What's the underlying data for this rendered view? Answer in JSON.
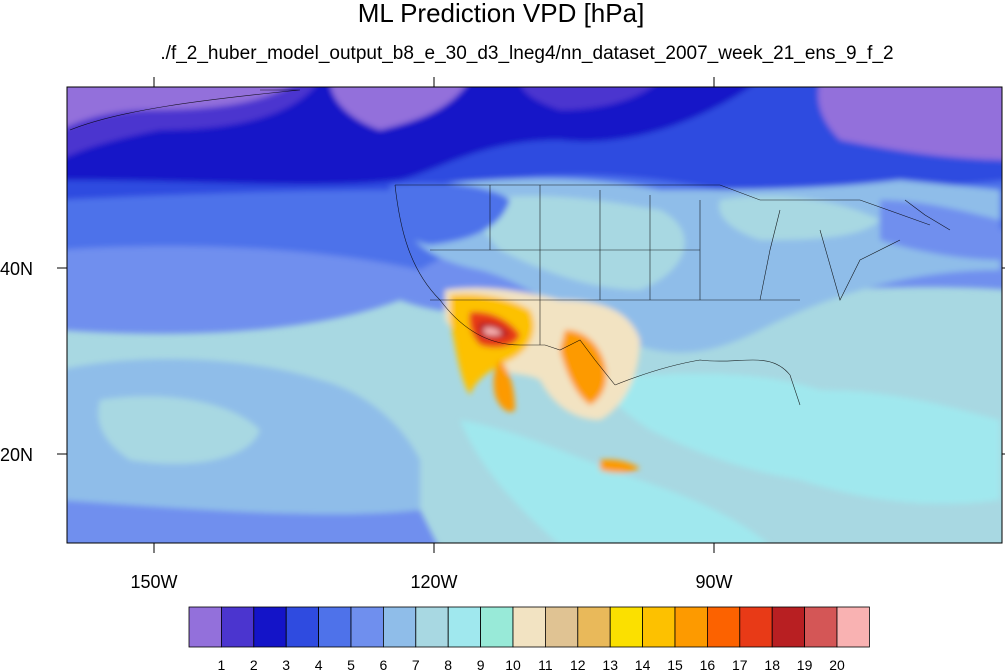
{
  "title": "ML Prediction VPD [hPa]",
  "subtitle": "./f_2_huber_model_output_b8_e_30_d3_lneg4/nn_dataset_2007_week_21_ens_9_f_2",
  "map": {
    "x_ticks": [
      "150W",
      "120W",
      "90W"
    ],
    "y_ticks": [
      "40N",
      "20N"
    ]
  },
  "colorbar": {
    "labels": [
      "1",
      "2",
      "3",
      "4",
      "5",
      "6",
      "7",
      "8",
      "9",
      "10",
      "11",
      "12",
      "13",
      "14",
      "15",
      "16",
      "17",
      "18",
      "19",
      "20"
    ],
    "colors": [
      "#9370db",
      "#4b35cf",
      "#1414c8",
      "#2f4be0",
      "#4e72ea",
      "#6f8fee",
      "#8fbde9",
      "#a8d8e2",
      "#a0e8ee",
      "#98ead8",
      "#f2e3c2",
      "#e0c393",
      "#e9b95a",
      "#fbe000",
      "#fdc100",
      "#fd9a00",
      "#fc6200",
      "#e83a17",
      "#b81f22",
      "#d45656",
      "#f9b2b2"
    ]
  }
}
